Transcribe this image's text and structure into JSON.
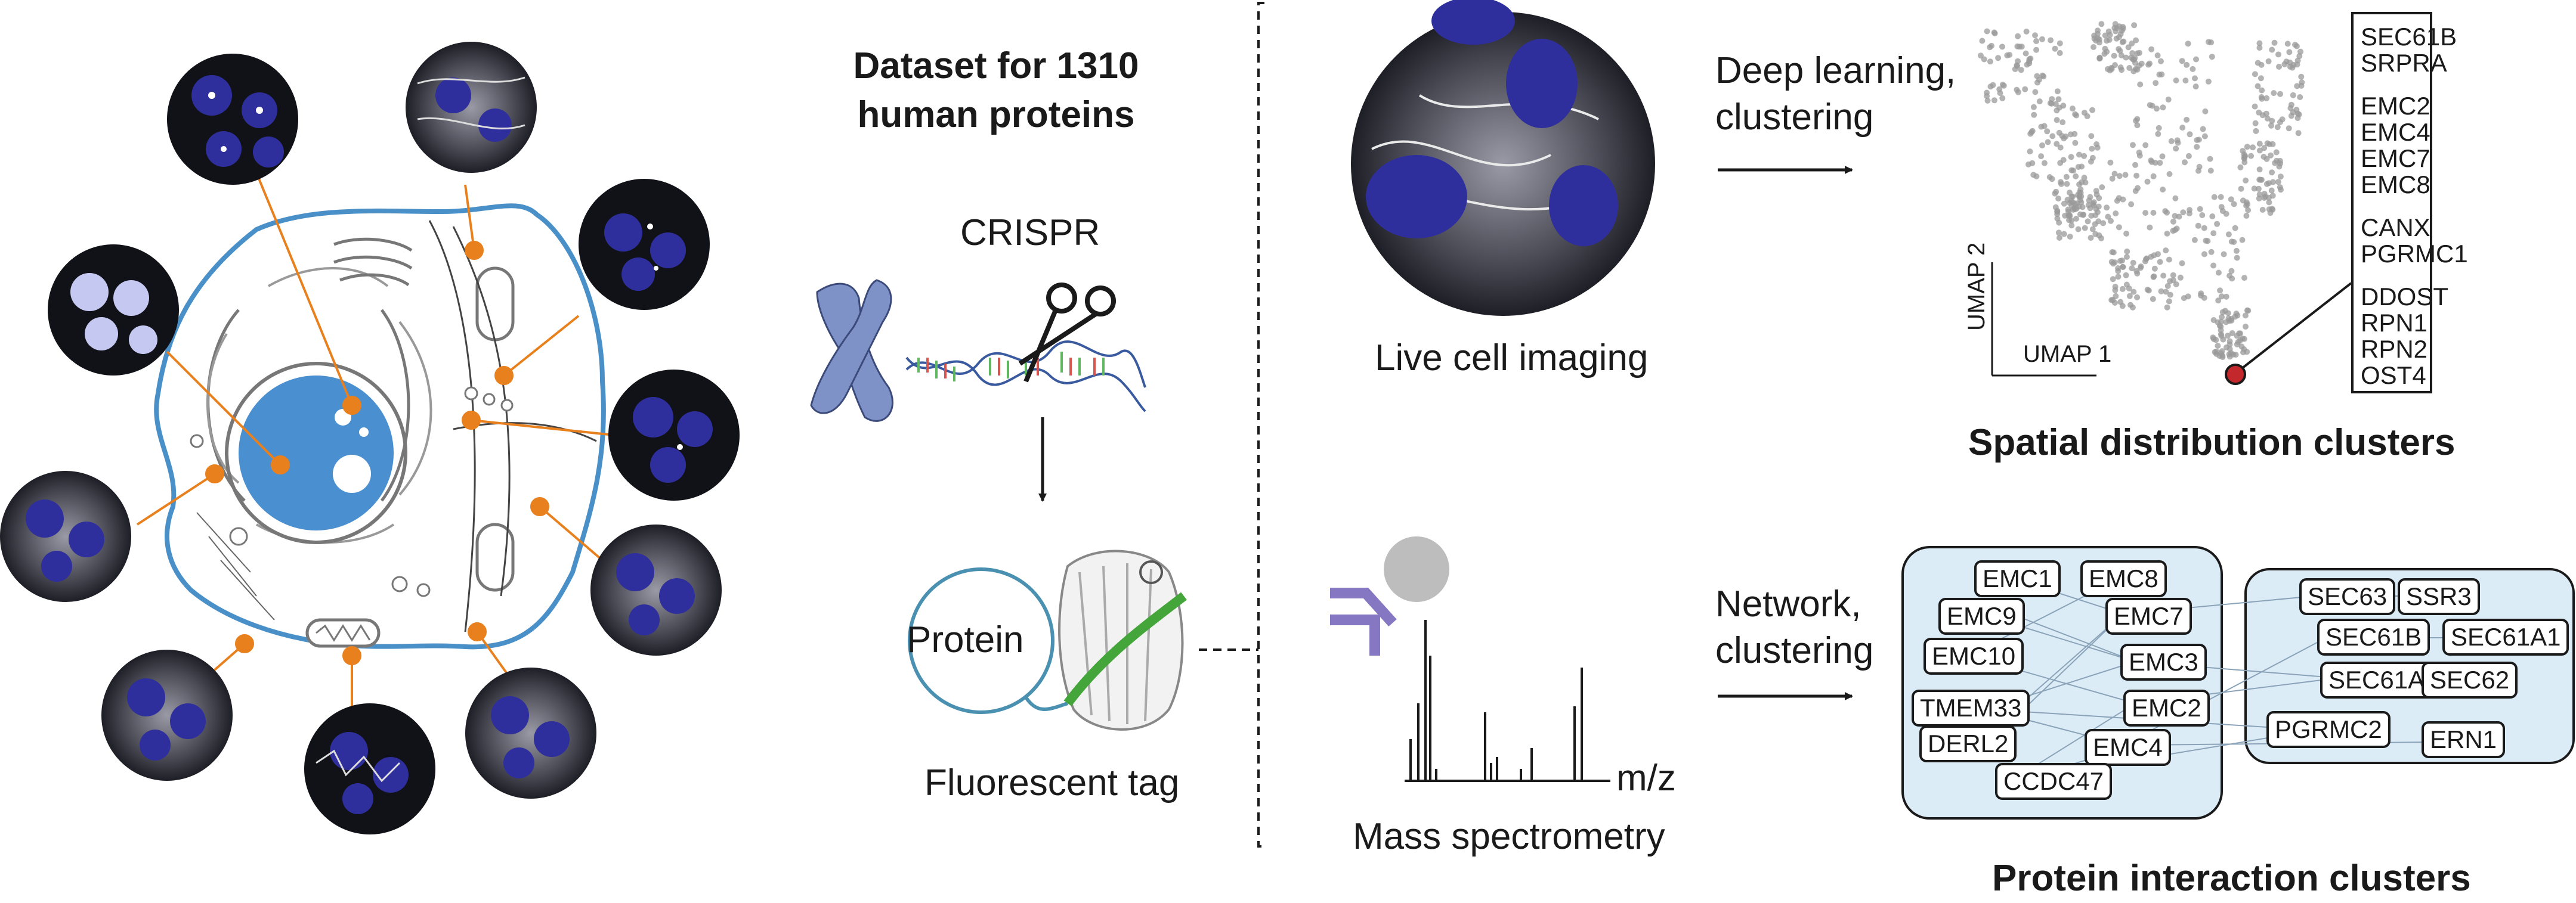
{
  "figure": {
    "dataset_title_line1": "Dataset for 1310",
    "dataset_title_line2": "human proteins",
    "crispr_label": "CRISPR",
    "protein_label": "Protein",
    "fluorescent_tag_label": "Fluorescent tag",
    "live_imaging_label": "Live cell imaging",
    "deep_learning_line1": "Deep learning,",
    "deep_learning_line2": "clustering",
    "network_line1": "Network,",
    "network_line2": "clustering",
    "mass_spec_label": "Mass spectrometry",
    "mz_label": "m/z",
    "umap_x_label": "UMAP 1",
    "umap_y_label": "UMAP 2",
    "spatial_title": "Spatial distribution clusters",
    "interaction_title": "Protein interaction clusters"
  },
  "spatial_genes": [
    [
      "SEC61B",
      "SRPRA"
    ],
    [
      "EMC2",
      "EMC4",
      "EMC7",
      "EMC8"
    ],
    [
      "CANX",
      "PGRMC1"
    ],
    [
      "DDOST",
      "RPN1",
      "RPN2",
      "OST4"
    ]
  ],
  "cluster_left": [
    "EMC1",
    "EMC8",
    "EMC9",
    "EMC7",
    "EMC10",
    "EMC3",
    "TMEM33",
    "EMC2",
    "DERL2",
    "EMC4",
    "CCDC47"
  ],
  "cluster_right": [
    "SEC63",
    "SSR3",
    "SEC61B",
    "SEC61A1",
    "SEC61A2",
    "SEC62",
    "PGRMC2",
    "ERN1"
  ],
  "colors": {
    "cell_outline": "#4a90c8",
    "nucleus": "#4a8fcf",
    "marker_orange": "#e8801e",
    "chromosome_blue": "#7e92c8",
    "cluster_fill": "#dcecf7",
    "antibody_purple": "#8577c2",
    "highlight_red": "#c3282c",
    "micrograph_blue": "#2e2f9c"
  },
  "icons": [
    "cell-schematic",
    "scissors-icon",
    "dna-helix-icon",
    "chromosome-icon",
    "gfp-barrel-icon",
    "antibody-icon",
    "micrograph-image"
  ]
}
